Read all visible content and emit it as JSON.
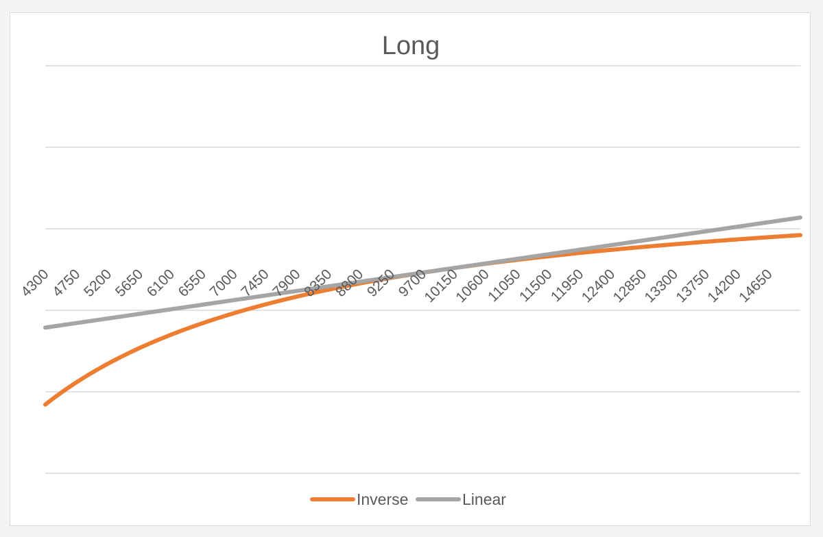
{
  "chart_data": {
    "type": "line",
    "title": "Long",
    "xlabel": "",
    "ylabel": "",
    "x": [
      4300,
      4750,
      5200,
      5650,
      6100,
      6550,
      7000,
      7450,
      7900,
      8350,
      8800,
      9250,
      9700,
      10150,
      10600,
      11050,
      11500,
      11950,
      12400,
      12850,
      13300,
      13750,
      14200,
      14650
    ],
    "x_tick_labels": [
      "4300",
      "4750",
      "5200",
      "5650",
      "6100",
      "6550",
      "7000",
      "7450",
      "7900",
      "8350",
      "8800",
      "9250",
      "9700",
      "10150",
      "10600",
      "11050",
      "11500",
      "11950",
      "12400",
      "12850",
      "13300",
      "13750",
      "14200",
      "14650"
    ],
    "x_range": [
      4300,
      15100
    ],
    "ylim": [
      -2.0,
      2.0
    ],
    "y_gridlines": 6,
    "y_axis_labels_shown": false,
    "reference_x": 10000,
    "series": [
      {
        "name": "Inverse",
        "formula": "1 - 10000/x",
        "color": "#ED7D31"
      },
      {
        "name": "Linear",
        "formula": "x/10000 - 1",
        "color": "#A5A5A5"
      }
    ],
    "grid": true,
    "legend_position": "bottom"
  }
}
